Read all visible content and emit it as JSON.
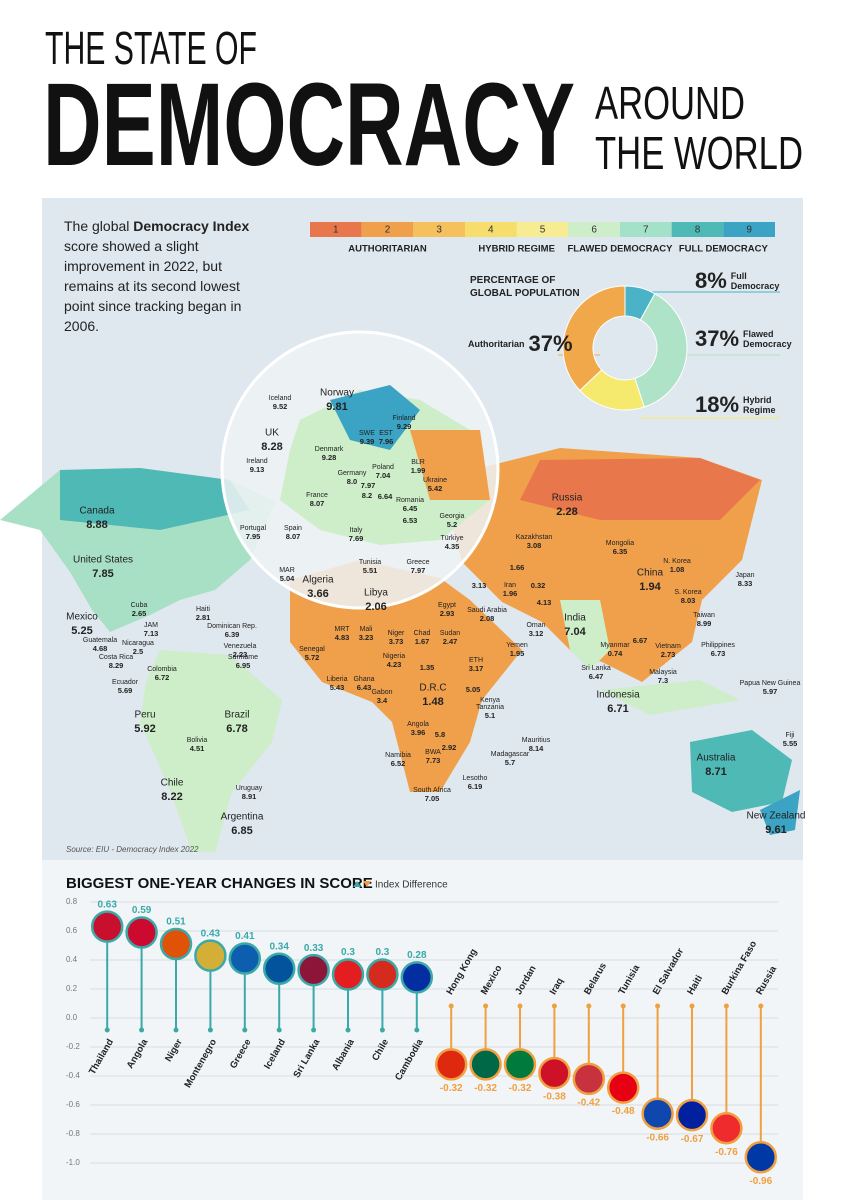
{
  "header": {
    "line1": "THE STATE OF",
    "line2": "DEMOCRACY",
    "line3": "AROUND",
    "line4": "THE WORLD"
  },
  "intro": {
    "before": "The global ",
    "bold": "Democracy Index",
    "after": " score showed a slight improvement in 2022, but remains at its second lowest point since tracking began in 2006."
  },
  "scale": {
    "steps": [
      {
        "label": "1",
        "color": "#e8774c"
      },
      {
        "label": "2",
        "color": "#f0a04b"
      },
      {
        "label": "3",
        "color": "#f5c15c"
      },
      {
        "label": "4",
        "color": "#f7dd6b"
      },
      {
        "label": "5",
        "color": "#f8ec92"
      },
      {
        "label": "6",
        "color": "#cdeec8"
      },
      {
        "label": "7",
        "color": "#a4e1c9"
      },
      {
        "label": "8",
        "color": "#4fb9b6"
      },
      {
        "label": "9",
        "color": "#3ba3c3"
      }
    ],
    "groups": [
      "AUTHORITARIAN",
      "HYBRID REGIME",
      "FLAWED DEMOCRACY",
      "FULL DEMOCRACY"
    ]
  },
  "map": {
    "source": "Source: EIU - Democracy Index 2022",
    "labels": [
      {
        "name": "Iceland",
        "value": 9.52
      },
      {
        "name": "Norway",
        "value": 9.81
      },
      {
        "name": "Finland",
        "value": 9.29
      },
      {
        "name": "UK",
        "value": 8.28
      },
      {
        "name": "SWE",
        "value": 9.39
      },
      {
        "name": "EST",
        "value": 7.96
      },
      {
        "name": "Denmark",
        "value": 9.28
      },
      {
        "name": "Ireland",
        "value": 9.13
      },
      {
        "name": "Poland",
        "value": 7.04
      },
      {
        "name": "BLR",
        "value": 1.99
      },
      {
        "name": "Germany",
        "value": 8,
        "value_label": "8.0"
      },
      {
        "name": null,
        "value": 7.97
      },
      {
        "name": "Ukraine",
        "value": 5.42
      },
      {
        "name": null,
        "value": 8.2
      },
      {
        "name": null,
        "value": 6.64
      },
      {
        "name": "Romania",
        "value": 6.45
      },
      {
        "name": "France",
        "value": 8.07
      },
      {
        "name": null,
        "value": 6.53
      },
      {
        "name": "Georgia",
        "value": 5.2
      },
      {
        "name": "Portugal",
        "value": 7.95
      },
      {
        "name": "Spain",
        "value": 8.07
      },
      {
        "name": "Italy",
        "value": 7.69
      },
      {
        "name": "Canada",
        "value": 8.88
      },
      {
        "name": "Russia",
        "value": 2.28
      },
      {
        "name": "Kazakhstan",
        "value": 3.08
      },
      {
        "name": "Türkiye",
        "value": 4.35
      },
      {
        "name": "Mongolia",
        "value": 6.35
      },
      {
        "name": "United States",
        "value": 7.85
      },
      {
        "name": "N. Korea",
        "value": 1.08
      },
      {
        "name": "Japan",
        "value": 8.33
      },
      {
        "name": "MAR",
        "value": 5.04
      },
      {
        "name": "Algeria",
        "value": 3.66
      },
      {
        "name": "Tunisia",
        "value": 5.51
      },
      {
        "name": "Greece",
        "value": 7.97
      },
      {
        "name": null,
        "value": 1.66
      },
      {
        "name": null,
        "value": 3.13
      },
      {
        "name": "Iran",
        "value": 1.96
      },
      {
        "name": null,
        "value": 0.32
      },
      {
        "name": "China",
        "value": 1.94
      },
      {
        "name": "S. Korea",
        "value": 8.03
      },
      {
        "name": "Libya",
        "value": 2.06
      },
      {
        "name": "Egypt",
        "value": 2.93
      },
      {
        "name": "Saudi Arabia",
        "value": 2.08
      },
      {
        "name": null,
        "value": 4.13
      },
      {
        "name": "Taiwan",
        "value": 8.99
      },
      {
        "name": "Cuba",
        "value": 2.65
      },
      {
        "name": "Haiti",
        "value": 2.81
      },
      {
        "name": "Mexico",
        "value": 5.25
      },
      {
        "name": "JAM",
        "value": 7.13
      },
      {
        "name": "Dominican Rep.",
        "value": 6.39
      },
      {
        "name": "India",
        "value": 7.04
      },
      {
        "name": "Oman",
        "value": 3.12
      },
      {
        "name": "MRT",
        "value": 4.83
      },
      {
        "name": "Mali",
        "value": 3.23
      },
      {
        "name": "Niger",
        "value": 3.73
      },
      {
        "name": "Chad",
        "value": 1.67
      },
      {
        "name": "Sudan",
        "value": 2.47
      },
      {
        "name": "Guatemala",
        "value": 4.68
      },
      {
        "name": "Nicaragua",
        "value": 2.5
      },
      {
        "name": "Venezuela",
        "value": 2.23
      },
      {
        "name": "Yemen",
        "value": 1.95
      },
      {
        "name": "Myanmar",
        "value": 0.74
      },
      {
        "name": null,
        "value": 6.67
      },
      {
        "name": "Vietnam",
        "value": 2.73
      },
      {
        "name": "Philippines",
        "value": 6.73
      },
      {
        "name": "Senegal",
        "value": 5.72
      },
      {
        "name": "Costa Rica",
        "value": 8.29
      },
      {
        "name": "Suriname",
        "value": 6.95
      },
      {
        "name": "Nigeria",
        "value": 4.23
      },
      {
        "name": "ETH",
        "value": 3.17
      },
      {
        "name": "Sri Lanka",
        "value": 6.47
      },
      {
        "name": "Colombia",
        "value": 6.72
      },
      {
        "name": null,
        "value": 1.35
      },
      {
        "name": "Malaysia",
        "value": 7.3
      },
      {
        "name": "Ecuador",
        "value": 5.69
      },
      {
        "name": "Liberia",
        "value": 5.43
      },
      {
        "name": "Ghana",
        "value": 6.43
      },
      {
        "name": "D.R.C",
        "value": 1.48
      },
      {
        "name": "Papua New Guinea",
        "value": 5.97
      },
      {
        "name": null,
        "value": 5.05
      },
      {
        "name": "Gabon",
        "value": 3.4
      },
      {
        "name": "Kenya",
        "value": null
      },
      {
        "name": "Tanzania",
        "value": 5.1
      },
      {
        "name": "Indonesia",
        "value": 6.71
      },
      {
        "name": "Peru",
        "value": 5.92
      },
      {
        "name": "Brazil",
        "value": 6.78
      },
      {
        "name": "Angola",
        "value": 3.96
      },
      {
        "name": null,
        "value": 5.8
      },
      {
        "name": "Bolivia",
        "value": 4.51
      },
      {
        "name": null,
        "value": 2.92
      },
      {
        "name": "Fiji",
        "value": 5.55
      },
      {
        "name": "Mauritius",
        "value": 8.14
      },
      {
        "name": "Namibia",
        "value": 6.52
      },
      {
        "name": "BWA",
        "value": 7.73
      },
      {
        "name": "Madagascar",
        "value": 5.7
      },
      {
        "name": "Australia",
        "value": 8.71
      },
      {
        "name": "Lesotho",
        "value": 6.19
      },
      {
        "name": "Chile",
        "value": 8.22
      },
      {
        "name": "Uruguay",
        "value": 8.91
      },
      {
        "name": "South Africa",
        "value": 7.05
      },
      {
        "name": "Argentina",
        "value": 6.85
      },
      {
        "name": "New Zealand",
        "value": 9.61
      }
    ]
  },
  "chart_data": [
    {
      "type": "donut",
      "title": "PERCENTAGE OF GLOBAL POPULATION",
      "categories": [
        "Full Democracy",
        "Flawed Democracy",
        "Hybrid Regime",
        "Authoritarian"
      ],
      "values": [
        8,
        37,
        18,
        37
      ],
      "value_labels": [
        "8%",
        "37%",
        "18%",
        "37%"
      ],
      "colors": [
        "#4ab3c8",
        "#aee3c8",
        "#f5ea6d",
        "#f0a84a"
      ]
    },
    {
      "type": "lollipop",
      "title": "BIGGEST ONE-YEAR CHANGES IN SCORE",
      "legend": "Index Difference",
      "categories": [
        "Thailand",
        "Angola",
        "Niger",
        "Montenegro",
        "Greece",
        "Iceland",
        "Sri Lanka",
        "Albania",
        "Chile",
        "Cambodia",
        "Hong Kong",
        "Mexico",
        "Jordan",
        "Iraq",
        "Belarus",
        "Tunisia",
        "El Salvador",
        "Haiti",
        "Burkina Faso",
        "Russia"
      ],
      "values": [
        0.63,
        0.59,
        0.51,
        0.43,
        0.41,
        0.34,
        0.33,
        0.3,
        0.3,
        0.28,
        -0.32,
        -0.32,
        -0.32,
        -0.38,
        -0.42,
        -0.48,
        -0.66,
        -0.67,
        -0.76,
        -0.96
      ],
      "positive_color": "#3aa9a8",
      "negative_color": "#f0a040",
      "ylim": [
        -1,
        0.8
      ],
      "yticks": [
        0.8,
        0.6,
        0.4,
        0.2,
        {
          "value": 0,
          "label": "0.0"
        },
        -0.2,
        -0.4,
        -0.6,
        -0.8,
        {
          "value": -1,
          "label": "-1.0"
        }
      ],
      "grid": true
    }
  ]
}
